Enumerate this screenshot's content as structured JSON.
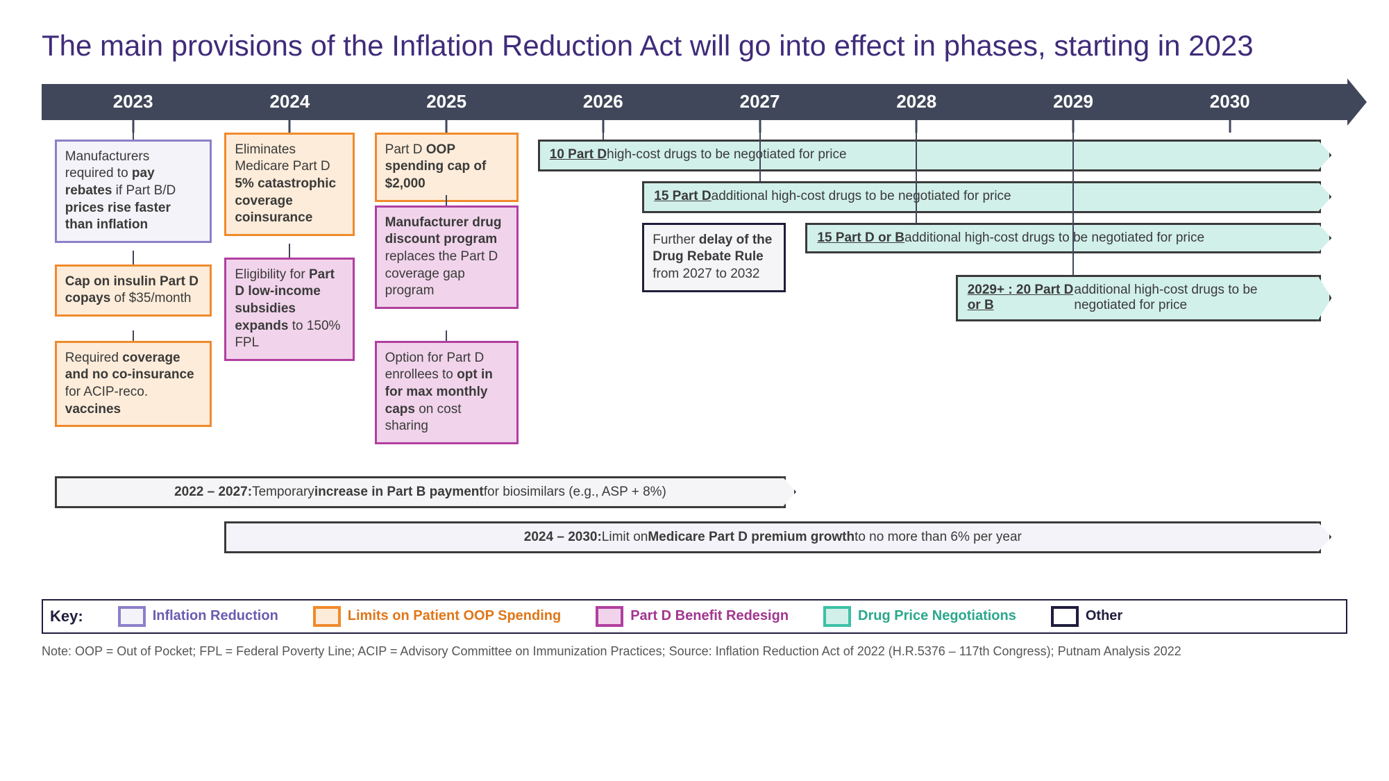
{
  "title": "The main provisions of the Inflation Reduction Act will go into effect in phases, starting in 2023",
  "years": [
    "2023",
    "2024",
    "2025",
    "2026",
    "2027",
    "2028",
    "2029",
    "2030"
  ],
  "year_positions_pct": [
    7,
    19,
    31,
    43,
    55,
    67,
    79,
    91
  ],
  "colors": {
    "timeline_bar": "#41475a",
    "title": "#3f2b7a",
    "inflation_border": "#8d7fc9",
    "inflation_fill": "#f4f3f9",
    "oop_border": "#f08a2c",
    "oop_fill": "#fdecd9",
    "redesign_border": "#b13fa0",
    "redesign_fill": "#f1d4eb",
    "negotiate_border": "#3dc0a6",
    "negotiate_fill": "#d2f0ea",
    "other_border": "#1f1d3d",
    "other_fill": "#f5f5f7"
  },
  "boxes": {
    "b2023_rebates": "Manufacturers required to <b>pay rebates</b> if Part B/D <b>prices rise faster than inflation</b>",
    "b2023_insulin": "<b>Cap on insulin Part D copays</b> of $35/month",
    "b2023_vaccines": "Required <b>coverage and no co-insurance</b> for ACIP-reco. <b>vaccines</b>",
    "b2024_catastrophic": "Eliminates Medicare Part D <b>5% catastrophic coverage coinsurance</b>",
    "b2024_lowincome": "Eligibility for <b>Part D low-income subsidies expands</b> to 150% FPL",
    "b2025_oopcap": "Part D <b>OOP spending cap of $2,000</b>",
    "b2025_discount": "<b>Manufacturer drug discount program</b> replaces the Part D coverage gap program",
    "b2025_optin": "Option for Part D enrollees to <b>opt in for max monthly caps</b> on cost sharing",
    "b2027_rebaterule": "Further <b>delay of the Drug Rebate Rule</b> from 2027 to 2032"
  },
  "arrow_bars": {
    "a2026_10partd": "<b><u>10 Part D</u></b> high-cost drugs to be negotiated for price",
    "a2027_15partd": "<b><u>15 Part D</u></b> additional high-cost drugs to be negotiated for price",
    "a2028_15partdb": "<b><u>15 Part D or B</u></b> additional high-cost drugs to be negotiated for price",
    "a2029_20partdb": "<b><u>2029+ : 20 Part D or B</u></b> additional high-cost drugs to be negotiated for price"
  },
  "wide_bars": {
    "biosimilars": "<b>2022 – 2027:</b> Temporary <b>increase in Part B payment</b> for biosimilars (e.g., ASP + 8%)",
    "premium_growth": "<b>2024 – 2030:</b> Limit on <b>Medicare Part D premium growth</b> to no more than 6% per year"
  },
  "legend": {
    "label": "Key:",
    "items": [
      {
        "name": "Inflation Reduction",
        "class": "inflation"
      },
      {
        "name": "Limits on Patient OOP Spending",
        "class": "oop"
      },
      {
        "name": "Part D Benefit Redesign",
        "class": "redesign"
      },
      {
        "name": "Drug Price Negotiations",
        "class": "negotiate"
      },
      {
        "name": "Other",
        "class": "other"
      }
    ]
  },
  "footnote": "Note: OOP = Out of Pocket; FPL = Federal Poverty Line; ACIP = Advisory Committee on Immunization Practices; Source: Inflation Reduction Act of 2022 (H.R.5376 – 117th Congress); Putnam Analysis 2022"
}
